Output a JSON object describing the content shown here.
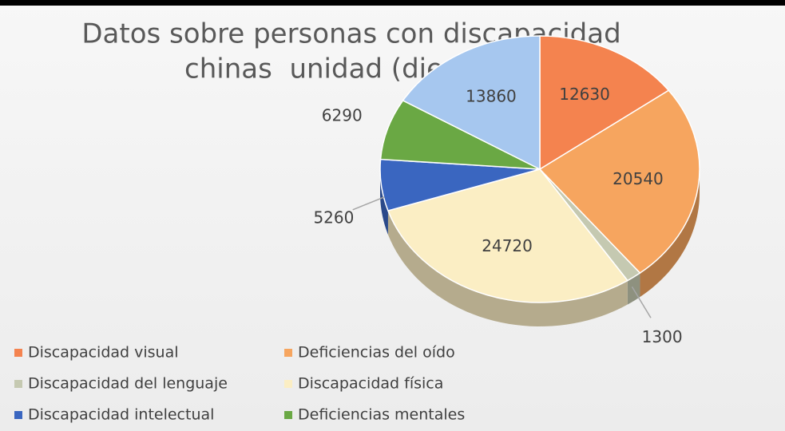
{
  "chart_data": {
    "type": "pie",
    "title": [
      "Datos sobre personas con discapacidad",
      "chinas  unidad (diez mil)"
    ],
    "categories": [
      "Discapacidad visual",
      "Deficiencias del oído",
      "Discapacidad del lenguaje",
      "Discapacidad física",
      "Discapacidad intelectual",
      "Deficiencias mentales",
      null
    ],
    "values": [
      12630,
      20540,
      1300,
      24720,
      5260,
      6290,
      13860
    ],
    "colors": [
      "#f4834f",
      "#f6a55f",
      "#c5c9b1",
      "#fbeec4",
      "#3a66c0",
      "#6aa844",
      "#a6c7ef"
    ],
    "legend": "bottom"
  }
}
